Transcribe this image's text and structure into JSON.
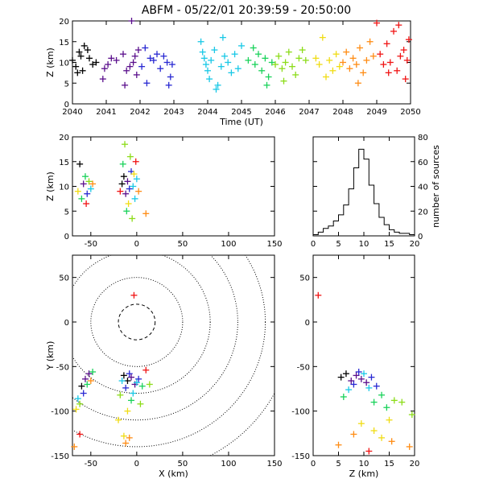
{
  "title": "ABFM - 05/22/01 20:39:59 - 20:50:00",
  "color_scale": [
    "#000000",
    "#5a0f8c",
    "#2828d2",
    "#19c8e6",
    "#19d25a",
    "#8cdc19",
    "#f0dc14",
    "#ff8c14",
    "#f01414"
  ],
  "chart_data": [
    {
      "id": "time-height",
      "type": "scatter",
      "xlabel": "Time (UT)",
      "ylabel": "Z (km)",
      "xlim": [
        2040,
        2050
      ],
      "ylim": [
        0,
        20
      ],
      "xticks": [
        "2040",
        "2041",
        "2042",
        "2043",
        "2044",
        "2045",
        "2046",
        "2047",
        "2048",
        "2049",
        "2050"
      ],
      "yticks": [
        "0",
        "5",
        "10",
        "15",
        "20"
      ],
      "series": [
        {
          "points": [
            [
              2040.0,
              10.5
            ],
            [
              2040.1,
              9.0
            ],
            [
              2040.2,
              12.5
            ],
            [
              2040.3,
              8.0
            ],
            [
              2040.35,
              14.0
            ],
            [
              2040.5,
              11.0
            ],
            [
              2040.6,
              9.5
            ],
            [
              2040.7,
              10.0
            ],
            [
              2040.15,
              7.5
            ],
            [
              2040.45,
              13.0
            ],
            [
              2040.25,
              11.5
            ]
          ]
        },
        {
          "points": [
            [
              2040.9,
              6.0
            ],
            [
              2040.95,
              8.5
            ],
            [
              2041.05,
              9.5
            ],
            [
              2041.15,
              11.0
            ],
            [
              2041.3,
              10.5
            ],
            [
              2041.5,
              12.0
            ],
            [
              2041.6,
              8.0
            ],
            [
              2041.75,
              20.0
            ],
            [
              2041.8,
              10.0
            ],
            [
              2041.9,
              7.0
            ],
            [
              2041.95,
              13.0
            ],
            [
              2041.7,
              9.0
            ],
            [
              2041.55,
              4.5
            ],
            [
              2041.85,
              11.5
            ]
          ]
        },
        {
          "points": [
            [
              2042.05,
              9.0
            ],
            [
              2042.15,
              13.5
            ],
            [
              2042.2,
              5.0
            ],
            [
              2042.3,
              11.0
            ],
            [
              2042.4,
              10.5
            ],
            [
              2042.6,
              8.5
            ],
            [
              2042.7,
              11.5
            ],
            [
              2042.8,
              10.0
            ],
            [
              2042.9,
              6.5
            ],
            [
              2042.95,
              9.5
            ],
            [
              2042.5,
              12.0
            ],
            [
              2042.85,
              4.5
            ]
          ]
        },
        {
          "points": [
            [
              2043.8,
              15.0
            ],
            [
              2043.85,
              12.5
            ],
            [
              2043.9,
              11.0
            ],
            [
              2043.95,
              9.5
            ],
            [
              2044.0,
              8.0
            ],
            [
              2044.05,
              6.0
            ],
            [
              2044.1,
              10.5
            ],
            [
              2044.2,
              13.0
            ],
            [
              2044.3,
              4.5
            ],
            [
              2044.4,
              9.0
            ],
            [
              2044.5,
              11.5
            ],
            [
              2044.6,
              10.0
            ],
            [
              2044.7,
              7.5
            ],
            [
              2044.8,
              12.0
            ],
            [
              2044.9,
              8.5
            ],
            [
              2045.0,
              14.0
            ],
            [
              2044.25,
              3.5
            ],
            [
              2044.45,
              16.0
            ]
          ]
        },
        {
          "points": [
            [
              2045.2,
              10.5
            ],
            [
              2045.4,
              9.5
            ],
            [
              2045.5,
              12.0
            ],
            [
              2045.6,
              8.0
            ],
            [
              2045.7,
              11.0
            ],
            [
              2045.8,
              6.5
            ],
            [
              2045.9,
              10.0
            ],
            [
              2045.35,
              13.5
            ],
            [
              2045.75,
              4.5
            ]
          ]
        },
        {
          "points": [
            [
              2046.0,
              9.5
            ],
            [
              2046.1,
              11.5
            ],
            [
              2046.2,
              8.5
            ],
            [
              2046.3,
              10.0
            ],
            [
              2046.4,
              12.5
            ],
            [
              2046.5,
              9.0
            ],
            [
              2046.6,
              7.0
            ],
            [
              2046.7,
              11.0
            ],
            [
              2046.8,
              13.0
            ],
            [
              2046.9,
              10.5
            ],
            [
              2046.25,
              5.5
            ]
          ]
        },
        {
          "points": [
            [
              2047.2,
              11.0
            ],
            [
              2047.3,
              9.5
            ],
            [
              2047.4,
              16.0
            ],
            [
              2047.6,
              10.5
            ],
            [
              2047.7,
              8.0
            ],
            [
              2047.8,
              12.0
            ],
            [
              2047.9,
              9.0
            ],
            [
              2047.5,
              6.5
            ]
          ]
        },
        {
          "points": [
            [
              2048.0,
              10.0
            ],
            [
              2048.1,
              12.5
            ],
            [
              2048.2,
              8.5
            ],
            [
              2048.3,
              11.0
            ],
            [
              2048.4,
              9.5
            ],
            [
              2048.5,
              13.5
            ],
            [
              2048.6,
              7.5
            ],
            [
              2048.7,
              10.5
            ],
            [
              2048.8,
              15.0
            ],
            [
              2048.9,
              11.5
            ],
            [
              2048.45,
              5.0
            ]
          ]
        },
        {
          "points": [
            [
              2049.0,
              19.5
            ],
            [
              2049.1,
              12.0
            ],
            [
              2049.2,
              9.5
            ],
            [
              2049.3,
              14.5
            ],
            [
              2049.4,
              10.0
            ],
            [
              2049.5,
              17.5
            ],
            [
              2049.6,
              8.0
            ],
            [
              2049.7,
              11.5
            ],
            [
              2049.8,
              13.0
            ],
            [
              2049.85,
              6.0
            ],
            [
              2049.9,
              10.5
            ],
            [
              2049.95,
              15.5
            ],
            [
              2049.35,
              7.5
            ],
            [
              2049.65,
              19.0
            ]
          ]
        }
      ]
    },
    {
      "id": "x-z",
      "type": "scatter",
      "ylabel": "Z (km)",
      "xlim": [
        -70,
        150
      ],
      "ylim": [
        0,
        20
      ],
      "xticks": [
        "-50",
        "0",
        "50",
        "100",
        "150"
      ],
      "yticks": [
        "0",
        "5",
        "10",
        "15",
        "20"
      ],
      "series": [
        {
          "points": [
            [
              -62.0,
              14.5
            ],
            [
              -58.0,
              10.5
            ],
            [
              -54.0,
              8.5
            ],
            [
              -50.0,
              9.5
            ],
            [
              -56.0,
              12.0
            ],
            [
              -60.0,
              7.5
            ],
            [
              -52.0,
              11.0
            ],
            [
              -64.0,
              9.0
            ],
            [
              -48.0,
              10.5
            ],
            [
              -55.0,
              6.5
            ]
          ]
        },
        {
          "points": [
            [
              -16.0,
              10.5
            ],
            [
              -14.0,
              12.0
            ],
            [
              -12.0,
              8.5
            ],
            [
              -10.0,
              11.0
            ],
            [
              -8.0,
              9.5
            ],
            [
              -6.0,
              13.0
            ],
            [
              -4.0,
              10.0
            ],
            [
              -2.0,
              7.5
            ],
            [
              0.0,
              11.5
            ],
            [
              -15.0,
              14.5
            ],
            [
              -11.0,
              5.0
            ],
            [
              -7.0,
              16.0
            ],
            [
              -5.0,
              3.5
            ],
            [
              -13.0,
              18.5
            ],
            [
              -9.0,
              6.5
            ],
            [
              -3.0,
              12.5
            ],
            [
              2.0,
              9.0
            ],
            [
              10.0,
              4.5
            ],
            [
              -1.0,
              15.0
            ],
            [
              -18.0,
              9.0
            ]
          ]
        }
      ]
    },
    {
      "id": "histogram",
      "type": "line",
      "ylabel": "number of sources",
      "xlim": [
        0,
        20
      ],
      "ylim": [
        0,
        80
      ],
      "xticks": [
        "0",
        "5",
        "10",
        "15",
        "20"
      ],
      "yticks": [
        "0",
        "20",
        "40",
        "60",
        "80"
      ],
      "x": [
        0,
        1,
        2,
        3,
        4,
        5,
        6,
        7,
        8,
        9,
        10,
        11,
        12,
        13,
        14,
        15,
        16,
        17,
        18,
        19,
        20
      ],
      "values": [
        1,
        3,
        6,
        8,
        12,
        17,
        25,
        38,
        55,
        70,
        62,
        41,
        26,
        15,
        9,
        5,
        3,
        2,
        2,
        1,
        0
      ]
    },
    {
      "id": "x-y",
      "type": "scatter",
      "xlabel": "X (km)",
      "ylabel": "Y (km)",
      "xlim": [
        -70,
        150
      ],
      "ylim": [
        -150,
        75
      ],
      "xticks": [
        "-50",
        "0",
        "50",
        "100",
        "150"
      ],
      "yticks": [
        "-150",
        "-100",
        "-50",
        "0",
        "50"
      ],
      "series": [
        {
          "points": [
            [
              -60.0,
              -72.0
            ],
            [
              -56.0,
              -64.0
            ],
            [
              -52.0,
              -58.0
            ],
            [
              -58.0,
              -80.0
            ],
            [
              -64.0,
              -86.0
            ],
            [
              -48.0,
              -56.0
            ],
            [
              -54.0,
              -70.0
            ],
            [
              -62.0,
              -92.0
            ],
            [
              -66.0,
              -98.0
            ],
            [
              -50.0,
              -66.0
            ],
            [
              -68.0,
              -140.0
            ],
            [
              -62.0,
              -126.0
            ]
          ]
        },
        {
          "points": [
            [
              -14.0,
              -60.0
            ],
            [
              -10.0,
              -66.0
            ],
            [
              -6.0,
              -62.0
            ],
            [
              -2.0,
              -70.0
            ],
            [
              2.0,
              -64.0
            ],
            [
              -12.0,
              -74.0
            ],
            [
              -8.0,
              -58.0
            ],
            [
              -4.0,
              -80.0
            ],
            [
              0.0,
              -68.0
            ],
            [
              -16.0,
              -66.0
            ],
            [
              6.0,
              -72.0
            ],
            [
              -6.0,
              -88.0
            ],
            [
              14.0,
              -70.0
            ],
            [
              -18.0,
              -82.0
            ],
            [
              4.0,
              -92.0
            ],
            [
              -10.0,
              -100.0
            ],
            [
              -20.0,
              -110.0
            ],
            [
              -14.0,
              -128.0
            ],
            [
              -8.0,
              -130.0
            ],
            [
              -12.0,
              -136.0
            ],
            [
              10.0,
              -54.0
            ],
            [
              -3.0,
              30.0
            ]
          ]
        }
      ],
      "range_rings_km": [
        20,
        50,
        80,
        110,
        140,
        170
      ]
    },
    {
      "id": "z-y",
      "type": "scatter",
      "xlabel": "Z (km)",
      "xlim": [
        0,
        20
      ],
      "ylim": [
        -150,
        75
      ],
      "xticks": [
        "0",
        "5",
        "10",
        "15",
        "20"
      ],
      "yticks": [
        "-150",
        "-100",
        "-50",
        "0",
        "50"
      ],
      "series": [
        {
          "points": [
            [
              5.5,
              -62.0
            ],
            [
              6.5,
              -58.0
            ],
            [
              7.5,
              -66.0
            ],
            [
              8.5,
              -60.0
            ],
            [
              9.5,
              -64.0
            ],
            [
              10.5,
              -68.0
            ],
            [
              11.5,
              -62.0
            ],
            [
              12.5,
              -72.0
            ],
            [
              9.0,
              -56.0
            ],
            [
              8.0,
              -70.0
            ],
            [
              10.0,
              -58.0
            ],
            [
              11.0,
              -74.0
            ],
            [
              7.0,
              -76.0
            ],
            [
              13.5,
              -82.0
            ],
            [
              6.0,
              -84.0
            ],
            [
              12.0,
              -90.0
            ],
            [
              14.5,
              -96.0
            ],
            [
              16.0,
              -88.0
            ],
            [
              17.5,
              -90.0
            ],
            [
              19.5,
              -104.0
            ],
            [
              15.0,
              -110.0
            ],
            [
              9.5,
              -114.0
            ],
            [
              12.0,
              -122.0
            ],
            [
              13.5,
              -130.0
            ],
            [
              8.0,
              -126.0
            ],
            [
              15.5,
              -134.0
            ],
            [
              19.0,
              -140.0
            ],
            [
              5.0,
              -138.0
            ],
            [
              11.0,
              -145.0
            ],
            [
              1.0,
              30.0
            ]
          ]
        }
      ]
    }
  ]
}
